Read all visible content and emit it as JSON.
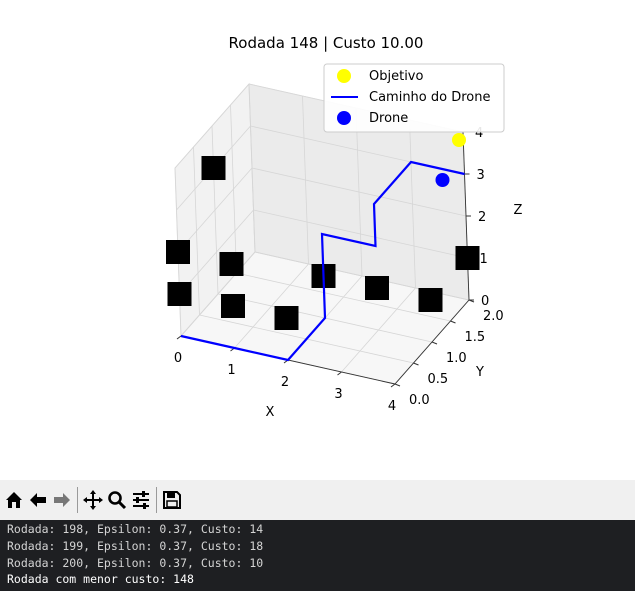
{
  "chart_data": {
    "type": "scatter-3d",
    "title": "Rodada 148 | Custo 10.00",
    "xlabel": "X",
    "ylabel": "Y",
    "zlabel": "Z",
    "xlim": [
      0,
      4
    ],
    "ylim": [
      0,
      2
    ],
    "zlim": [
      0,
      4
    ],
    "xticks": [
      "0",
      "1",
      "2",
      "3",
      "4"
    ],
    "yticks": [
      "0.0",
      "0.5",
      "1.0",
      "1.5",
      "2.0"
    ],
    "zticks": [
      "0",
      "1",
      "2",
      "3",
      "4"
    ],
    "grid": true,
    "legend_position": "top-right",
    "legend": [
      {
        "label": "Objetivo",
        "marker": "circle",
        "color": "#ffff00"
      },
      {
        "label": "Caminho do Drone",
        "marker": "line",
        "color": "#0000ff"
      },
      {
        "label": "Drone",
        "marker": "circle",
        "color": "#0000ff"
      }
    ],
    "objective": {
      "x": 4,
      "y": 2,
      "z": 4,
      "color": "#ffff00"
    },
    "drone": {
      "x": 4,
      "y": 2,
      "z": 3,
      "color": "#0000ff"
    },
    "path": {
      "color": "#0000ff",
      "points": [
        [
          0,
          0,
          0
        ],
        [
          1,
          0,
          0
        ],
        [
          2,
          0,
          0
        ],
        [
          2,
          1,
          0
        ],
        [
          2,
          1,
          1
        ],
        [
          2,
          1,
          2
        ],
        [
          3,
          1,
          2
        ],
        [
          3,
          1,
          3
        ],
        [
          3,
          2,
          3
        ],
        [
          4,
          2,
          3
        ]
      ]
    },
    "obstacles": {
      "color": "#000000",
      "points": [
        [
          0,
          0,
          1
        ],
        [
          0,
          0,
          2
        ],
        [
          0,
          1,
          3
        ],
        [
          1,
          0,
          1
        ],
        [
          1,
          0,
          2
        ],
        [
          2,
          0,
          1
        ],
        [
          2,
          1,
          1
        ],
        [
          3,
          1,
          1
        ],
        [
          4,
          1,
          1
        ],
        [
          4,
          2,
          1
        ]
      ]
    }
  },
  "toolbar": {
    "buttons": [
      {
        "name": "home-icon"
      },
      {
        "name": "back-arrow-icon"
      },
      {
        "name": "forward-arrow-icon"
      },
      {
        "name": "pan-move-icon"
      },
      {
        "name": "zoom-magnifier-icon"
      },
      {
        "name": "configure-subplots-icon"
      },
      {
        "name": "save-floppy-icon"
      }
    ]
  },
  "console": {
    "lines": [
      "Rodada: 198, Epsilon: 0.37, Custo: 14",
      "Rodada: 199, Epsilon: 0.37, Custo: 18",
      "Rodada: 200, Epsilon: 0.37, Custo: 10",
      "Rodada com menor custo: 148"
    ]
  }
}
